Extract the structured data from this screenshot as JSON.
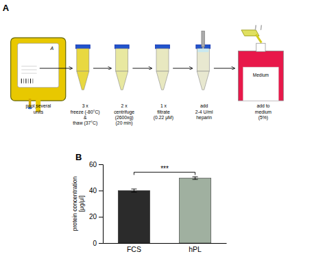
{
  "chart_data": {
    "type": "bar",
    "categories": [
      "FCS",
      "hPL"
    ],
    "values": [
      40.0,
      49.5
    ],
    "errors": [
      1.2,
      1.0
    ],
    "colors": [
      "#2b2b2b",
      "#a0b0a0"
    ],
    "ylabel": "protein concentration\n[μg/μl]",
    "ylim": [
      0,
      60
    ],
    "yticks": [
      0,
      20,
      40,
      60
    ],
    "grid": false,
    "annotations": [
      "A",
      "A",
      "Medium",
      "pool several\nunits",
      "3 x\nfreeze (-80°C)\n&\nthaw (37°C)",
      "2 x\ncentrifuge\n(2600xg)\n(20 min)",
      "1 x\nfiltrate\n(0.22 μM)",
      "add\n2-4 U/ml\nheparin",
      "add to\nmedium\n(5%)",
      "B",
      "***"
    ]
  }
}
